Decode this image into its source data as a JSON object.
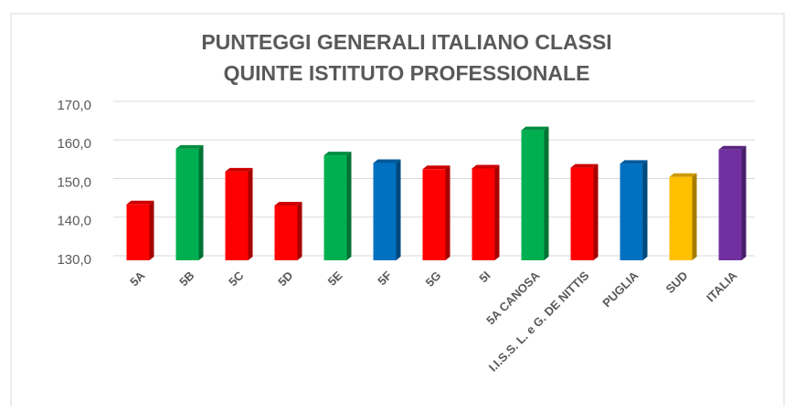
{
  "chart_data": {
    "type": "bar3d",
    "title": [
      "PUNTEGGI GENERALI  ITALIANO CLASSI",
      "QUINTE ISTITUTO PROFESSIONALE"
    ],
    "categories": [
      "5A",
      "5B",
      "5C",
      "5D",
      "5E",
      "5F",
      "5G",
      "5I",
      "5A CANOSA",
      "I.I.S.S. L. e G. DE NITTIS",
      "PUGLIA",
      "SUD",
      "ITALIA"
    ],
    "values": [
      144.5,
      158.9,
      153.0,
      144.2,
      157.2,
      155.2,
      153.6,
      153.8,
      163.7,
      154.0,
      155.0,
      151.6,
      158.7
    ],
    "colors": [
      "#ff0000",
      "#00b050",
      "#ff0000",
      "#ff0000",
      "#00b050",
      "#0070c0",
      "#ff0000",
      "#ff0000",
      "#00b050",
      "#ff0000",
      "#0070c0",
      "#ffc000",
      "#7030a0"
    ],
    "ylim": [
      130,
      170
    ],
    "yticks": [
      {
        "value": 130,
        "label": "130,0"
      },
      {
        "value": 140,
        "label": "140,0"
      },
      {
        "value": 150,
        "label": "150,0"
      },
      {
        "value": 160,
        "label": "160,0"
      },
      {
        "value": 170,
        "label": "170,0"
      }
    ],
    "grid": true
  }
}
